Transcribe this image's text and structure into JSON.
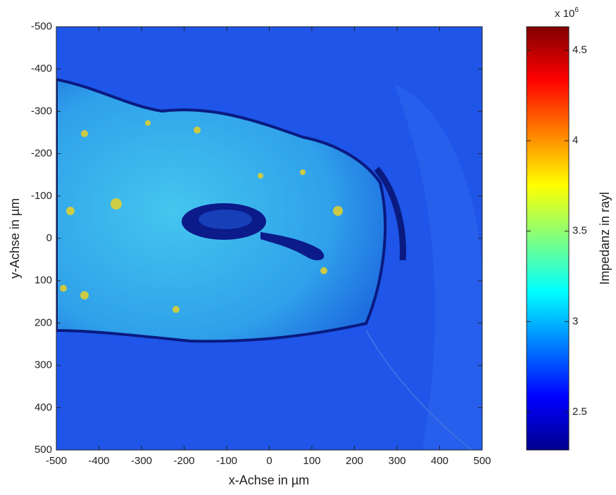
{
  "chart_data": {
    "type": "heatmap",
    "xlabel": "x-Achse in µm",
    "ylabel": "y-Achse in µm",
    "xlim": [
      -500,
      500
    ],
    "ylim": [
      -500,
      500
    ],
    "y_reversed": true,
    "xticks": [
      -500,
      -400,
      -300,
      -200,
      -100,
      0,
      100,
      200,
      300,
      400,
      500
    ],
    "yticks": [
      -500,
      -400,
      -300,
      -200,
      -100,
      0,
      100,
      200,
      300,
      400,
      500
    ],
    "colormap": "jet",
    "colorbar": {
      "label": "Impedanz in rayl",
      "exponent_base": "x 10",
      "exponent_power": "6",
      "lim": [
        2290000,
        4630000
      ],
      "ticks": [
        {
          "value": 2500000,
          "label": "2.5"
        },
        {
          "value": 3000000,
          "label": "3"
        },
        {
          "value": 3500000,
          "label": "3.5"
        },
        {
          "value": 4000000,
          "label": "4"
        },
        {
          "value": 4500000,
          "label": "4.5"
        }
      ]
    }
  }
}
